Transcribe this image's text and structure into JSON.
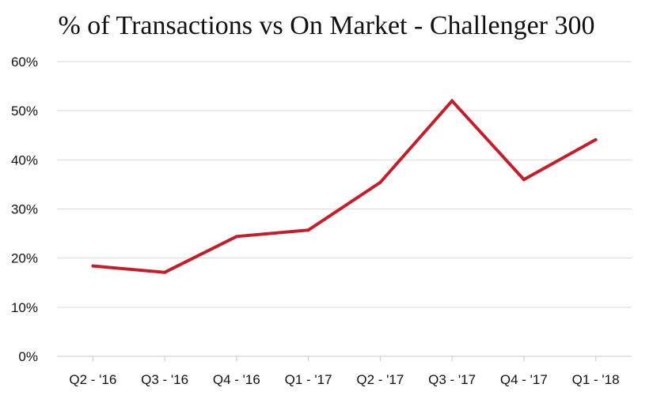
{
  "chart_data": {
    "type": "line",
    "title": "% of Transactions vs On Market - Challenger 300",
    "categories": [
      "Q2 - '16",
      "Q3 - '16",
      "Q4 - '16",
      "Q1 - '17",
      "Q2 - '17",
      "Q3 - '17",
      "Q4 - '17",
      "Q1 - '18"
    ],
    "series": [
      {
        "values": [
          0.184,
          0.171,
          0.244,
          0.257,
          0.354,
          0.52,
          0.36,
          0.441
        ]
      }
    ],
    "ylim": [
      0,
      0.6
    ],
    "yticks": [
      "0%",
      "10%",
      "20%",
      "30%",
      "40%",
      "50%",
      "60%"
    ],
    "grid": true,
    "legend": "none",
    "colors": {
      "line": "#c41e2a",
      "grid": "#d9d9d9",
      "text": "#111111"
    }
  }
}
